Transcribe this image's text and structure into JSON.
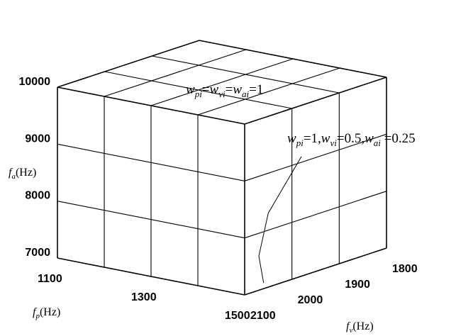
{
  "chart_data": {
    "type": "3d-grid-cube",
    "axes": {
      "fp": {
        "label": {
          "symbol": "f",
          "sub": "p",
          "unit": "(Hz)"
        },
        "range": [
          1100,
          1500
        ],
        "ticks": [
          {
            "value": 1100,
            "label": "1100"
          },
          {
            "value": 1300,
            "label": "1300"
          },
          {
            "value": 1500,
            "label": "1500"
          }
        ],
        "gridlines": [
          1100,
          1200,
          1300,
          1400,
          1500
        ]
      },
      "fv": {
        "label": {
          "symbol": "f",
          "sub": "v",
          "unit": "(Hz)"
        },
        "range": [
          1800,
          2100
        ],
        "ticks": [
          {
            "value": 2100,
            "label": "2100"
          },
          {
            "value": 2000,
            "label": "2000"
          },
          {
            "value": 1900,
            "label": "1900"
          },
          {
            "value": 1800,
            "label": "1800"
          }
        ],
        "gridlines": [
          1800,
          1900,
          2000,
          2100
        ]
      },
      "fa": {
        "label": {
          "symbol": "f",
          "sub": "a",
          "unit": "(Hz)"
        },
        "range": [
          7000,
          10000
        ],
        "ticks": [
          {
            "value": 7000,
            "label": "7000"
          },
          {
            "value": 8000,
            "label": "8000"
          },
          {
            "value": 9000,
            "label": "9000"
          },
          {
            "value": 10000,
            "label": "10000"
          }
        ],
        "gridlines": [
          7000,
          8000,
          9000,
          10000
        ]
      }
    },
    "annotations": [
      {
        "id": "equal-weights",
        "parts": [
          {
            "t": "w",
            "it": true
          },
          {
            "t": "pi",
            "sub": true
          },
          {
            "t": "="
          },
          {
            "t": "w",
            "it": true
          },
          {
            "t": "vi",
            "sub": true
          },
          {
            "t": "="
          },
          {
            "t": "w",
            "it": true
          },
          {
            "t": "ai",
            "sub": true
          },
          {
            "t": "=1"
          }
        ],
        "curve": [
          {
            "fp": 1300,
            "fv": 2100,
            "fa": 9680
          },
          {
            "fp": 1300,
            "fv": 2100,
            "fa": 9440
          },
          {
            "fp": 1300,
            "fv": 2100,
            "fa": 9030
          }
        ]
      },
      {
        "id": "unequal-weights",
        "parts": [
          {
            "t": "w",
            "it": true
          },
          {
            "t": "pi",
            "sub": true
          },
          {
            "t": "=1,"
          },
          {
            "t": "w",
            "it": true
          },
          {
            "t": "vi",
            "sub": true
          },
          {
            "t": "=0.5,"
          },
          {
            "t": "w",
            "it": true
          },
          {
            "t": "ai",
            "sub": true
          },
          {
            "t": " =0.25"
          }
        ],
        "curve": [
          {
            "fp": 1500,
            "fv": 1980,
            "fa": 9100
          },
          {
            "fp": 1500,
            "fv": 2050,
            "fa": 8300
          },
          {
            "fp": 1500,
            "fv": 2070,
            "fa": 7600
          },
          {
            "fp": 1500,
            "fv": 2060,
            "fa": 7100
          }
        ]
      }
    ]
  }
}
